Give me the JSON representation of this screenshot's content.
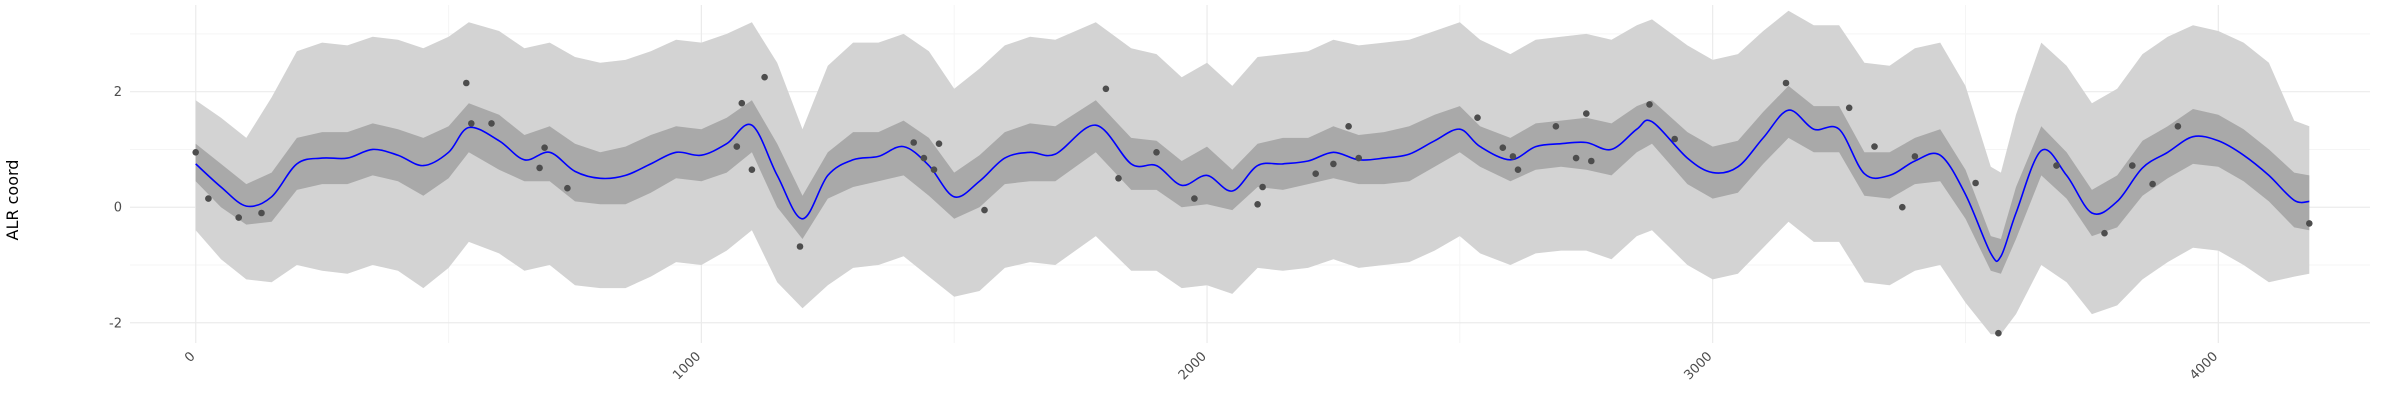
{
  "chart_data": {
    "type": "line",
    "title": "",
    "xlabel": "",
    "ylabel": "ALR coord",
    "xlim": [
      -130,
      4300
    ],
    "ylim": [
      -2.35,
      3.5
    ],
    "x_ticks": [
      0,
      1000,
      2000,
      3000,
      4000
    ],
    "x_tick_labels": [
      "0",
      "1000",
      "2000",
      "3000",
      "4000"
    ],
    "y_ticks": [
      -2,
      0,
      2
    ],
    "y_tick_labels": [
      "-2",
      "0",
      "2"
    ],
    "grid": true,
    "colors": {
      "mean": "#0000ff",
      "inner_band": "#a9a9a9",
      "outer_band": "#d3d3d3",
      "points": "#4d4d4d",
      "grid_major": "#ebebeb",
      "grid_minor": "#f5f5f5"
    },
    "mean_line": {
      "x": [
        0,
        50,
        100,
        150,
        200,
        250,
        300,
        350,
        400,
        450,
        500,
        540,
        600,
        650,
        700,
        750,
        800,
        850,
        900,
        950,
        1000,
        1050,
        1100,
        1150,
        1200,
        1250,
        1300,
        1350,
        1400,
        1450,
        1500,
        1550,
        1600,
        1650,
        1700,
        1780,
        1850,
        1900,
        1950,
        2000,
        2050,
        2100,
        2150,
        2200,
        2250,
        2300,
        2350,
        2400,
        2450,
        2500,
        2540,
        2600,
        2650,
        2700,
        2750,
        2800,
        2850,
        2880,
        2950,
        3000,
        3050,
        3100,
        3150,
        3200,
        3250,
        3300,
        3350,
        3400,
        3450,
        3500,
        3550,
        3570,
        3600,
        3650,
        3700,
        3750,
        3800,
        3850,
        3900,
        3950,
        4000,
        4050,
        4100,
        4150,
        4180
      ],
      "y": [
        0.75,
        0.35,
        0.02,
        0.18,
        0.75,
        0.85,
        0.85,
        1.0,
        0.9,
        0.72,
        0.95,
        1.38,
        1.15,
        0.82,
        0.95,
        0.62,
        0.5,
        0.55,
        0.75,
        0.95,
        0.9,
        1.1,
        1.42,
        0.55,
        -0.2,
        0.55,
        0.82,
        0.88,
        1.05,
        0.72,
        0.18,
        0.45,
        0.85,
        0.95,
        0.92,
        1.42,
        0.75,
        0.72,
        0.38,
        0.55,
        0.28,
        0.72,
        0.75,
        0.8,
        0.95,
        0.82,
        0.85,
        0.92,
        1.15,
        1.35,
        1.05,
        0.82,
        1.05,
        1.1,
        1.12,
        1.0,
        1.35,
        1.48,
        0.85,
        0.6,
        0.7,
        1.2,
        1.68,
        1.35,
        1.35,
        0.58,
        0.55,
        0.8,
        0.9,
        0.22,
        -0.8,
        -0.85,
        -0.1,
        0.98,
        0.55,
        -0.1,
        0.1,
        0.68,
        0.95,
        1.22,
        1.15,
        0.9,
        0.55,
        0.12,
        0.1
      ]
    },
    "inner_band": {
      "x": [
        0,
        50,
        100,
        150,
        200,
        250,
        300,
        350,
        400,
        450,
        500,
        540,
        600,
        650,
        700,
        750,
        800,
        850,
        900,
        950,
        1000,
        1050,
        1100,
        1150,
        1200,
        1250,
        1300,
        1350,
        1400,
        1450,
        1500,
        1550,
        1600,
        1650,
        1700,
        1780,
        1850,
        1900,
        1950,
        2000,
        2050,
        2100,
        2150,
        2200,
        2250,
        2300,
        2350,
        2400,
        2450,
        2500,
        2540,
        2600,
        2650,
        2700,
        2750,
        2800,
        2850,
        2880,
        2950,
        3000,
        3050,
        3100,
        3150,
        3200,
        3250,
        3300,
        3350,
        3400,
        3450,
        3500,
        3550,
        3570,
        3600,
        3650,
        3700,
        3750,
        3800,
        3850,
        3900,
        3950,
        4000,
        4050,
        4100,
        4150,
        4180
      ],
      "lower": [
        0.45,
        0.0,
        -0.3,
        -0.25,
        0.3,
        0.4,
        0.4,
        0.55,
        0.45,
        0.2,
        0.5,
        0.95,
        0.65,
        0.45,
        0.45,
        0.1,
        0.05,
        0.05,
        0.25,
        0.5,
        0.45,
        0.6,
        0.95,
        0.0,
        -0.55,
        0.15,
        0.35,
        0.45,
        0.55,
        0.2,
        -0.2,
        0.0,
        0.4,
        0.45,
        0.45,
        0.95,
        0.3,
        0.3,
        0.0,
        0.05,
        -0.05,
        0.35,
        0.3,
        0.4,
        0.5,
        0.4,
        0.4,
        0.45,
        0.7,
        0.95,
        0.7,
        0.45,
        0.65,
        0.7,
        0.65,
        0.55,
        0.95,
        1.1,
        0.4,
        0.15,
        0.25,
        0.75,
        1.2,
        0.95,
        0.95,
        0.2,
        0.15,
        0.4,
        0.45,
        -0.2,
        -1.1,
        -1.15,
        -0.55,
        0.55,
        0.15,
        -0.5,
        -0.35,
        0.2,
        0.5,
        0.75,
        0.7,
        0.45,
        0.1,
        -0.35,
        -0.4
      ],
      "upper": [
        1.1,
        0.75,
        0.4,
        0.6,
        1.2,
        1.3,
        1.3,
        1.45,
        1.35,
        1.2,
        1.4,
        1.8,
        1.6,
        1.25,
        1.4,
        1.1,
        0.95,
        1.05,
        1.25,
        1.4,
        1.35,
        1.55,
        1.85,
        1.1,
        0.2,
        0.95,
        1.3,
        1.3,
        1.5,
        1.2,
        0.6,
        0.9,
        1.3,
        1.45,
        1.4,
        1.85,
        1.2,
        1.15,
        0.8,
        1.05,
        0.65,
        1.1,
        1.2,
        1.2,
        1.4,
        1.25,
        1.3,
        1.4,
        1.6,
        1.75,
        1.4,
        1.2,
        1.45,
        1.5,
        1.55,
        1.45,
        1.75,
        1.85,
        1.3,
        1.05,
        1.15,
        1.65,
        2.1,
        1.75,
        1.75,
        0.95,
        0.95,
        1.2,
        1.35,
        0.65,
        -0.5,
        -0.55,
        0.35,
        1.4,
        0.95,
        0.3,
        0.55,
        1.15,
        1.4,
        1.7,
        1.6,
        1.35,
        1.0,
        0.6,
        0.55
      ]
    },
    "outer_band": {
      "x": [
        0,
        50,
        100,
        150,
        200,
        250,
        300,
        350,
        400,
        450,
        500,
        540,
        600,
        650,
        700,
        750,
        800,
        850,
        900,
        950,
        1000,
        1050,
        1100,
        1150,
        1200,
        1250,
        1300,
        1350,
        1400,
        1450,
        1500,
        1550,
        1600,
        1650,
        1700,
        1780,
        1850,
        1900,
        1950,
        2000,
        2050,
        2100,
        2150,
        2200,
        2250,
        2300,
        2350,
        2400,
        2450,
        2500,
        2540,
        2600,
        2650,
        2700,
        2750,
        2800,
        2850,
        2880,
        2950,
        3000,
        3050,
        3100,
        3150,
        3200,
        3250,
        3300,
        3350,
        3400,
        3450,
        3500,
        3550,
        3570,
        3600,
        3650,
        3700,
        3750,
        3800,
        3850,
        3900,
        3950,
        4000,
        4050,
        4100,
        4150,
        4180
      ],
      "lower": [
        -0.4,
        -0.9,
        -1.25,
        -1.3,
        -1.0,
        -1.1,
        -1.15,
        -1.0,
        -1.1,
        -1.4,
        -1.05,
        -0.6,
        -0.8,
        -1.1,
        -1.0,
        -1.35,
        -1.4,
        -1.4,
        -1.2,
        -0.95,
        -1.0,
        -0.75,
        -0.4,
        -1.3,
        -1.75,
        -1.35,
        -1.05,
        -1.0,
        -0.85,
        -1.2,
        -1.55,
        -1.45,
        -1.05,
        -0.95,
        -1.0,
        -0.5,
        -1.1,
        -1.1,
        -1.4,
        -1.35,
        -1.5,
        -1.05,
        -1.1,
        -1.05,
        -0.9,
        -1.05,
        -1.0,
        -0.95,
        -0.75,
        -0.5,
        -0.8,
        -1.0,
        -0.8,
        -0.75,
        -0.75,
        -0.9,
        -0.5,
        -0.4,
        -1.0,
        -1.25,
        -1.15,
        -0.7,
        -0.25,
        -0.6,
        -0.6,
        -1.3,
        -1.35,
        -1.1,
        -1.0,
        -1.65,
        -2.2,
        -2.2,
        -1.85,
        -1.0,
        -1.3,
        -1.85,
        -1.7,
        -1.25,
        -0.95,
        -0.7,
        -0.75,
        -1.0,
        -1.3,
        -1.2,
        -1.15
      ],
      "upper": [
        1.85,
        1.55,
        1.2,
        1.9,
        2.7,
        2.85,
        2.8,
        2.95,
        2.9,
        2.75,
        2.95,
        3.2,
        3.05,
        2.75,
        2.85,
        2.6,
        2.5,
        2.55,
        2.7,
        2.9,
        2.85,
        3.0,
        3.2,
        2.5,
        1.35,
        2.45,
        2.85,
        2.85,
        3.0,
        2.7,
        2.05,
        2.4,
        2.8,
        2.95,
        2.9,
        3.2,
        2.75,
        2.65,
        2.25,
        2.5,
        2.1,
        2.6,
        2.65,
        2.7,
        2.9,
        2.8,
        2.85,
        2.9,
        3.05,
        3.2,
        2.9,
        2.65,
        2.9,
        2.95,
        3.0,
        2.9,
        3.15,
        3.25,
        2.8,
        2.55,
        2.65,
        3.05,
        3.4,
        3.15,
        3.15,
        2.5,
        2.45,
        2.75,
        2.85,
        2.1,
        0.7,
        0.6,
        1.6,
        2.85,
        2.45,
        1.8,
        2.05,
        2.65,
        2.95,
        3.15,
        3.05,
        2.85,
        2.5,
        1.5,
        1.4
      ]
    },
    "points": {
      "x": [
        0,
        25,
        85,
        130,
        535,
        545,
        585,
        680,
        690,
        735,
        1070,
        1080,
        1100,
        1125,
        1195,
        1420,
        1440,
        1460,
        1470,
        1560,
        1800,
        1825,
        1900,
        1975,
        2100,
        2110,
        2215,
        2250,
        2280,
        2300,
        2535,
        2585,
        2605,
        2615,
        2690,
        2730,
        2750,
        2760,
        2875,
        2925,
        3145,
        3270,
        3320,
        3375,
        3400,
        3520,
        3565,
        3680,
        3775,
        3830,
        3870,
        3920,
        4180
      ],
      "y": [
        0.95,
        0.15,
        -0.18,
        -0.1,
        2.15,
        1.45,
        1.45,
        0.68,
        1.03,
        0.33,
        1.05,
        1.8,
        0.65,
        2.25,
        -0.68,
        1.12,
        0.85,
        0.65,
        1.1,
        -0.05,
        2.05,
        0.5,
        0.95,
        0.15,
        0.05,
        0.35,
        0.58,
        0.75,
        1.4,
        0.85,
        1.55,
        1.03,
        0.88,
        0.65,
        1.4,
        0.85,
        1.62,
        0.8,
        1.78,
        1.18,
        2.15,
        1.72,
        1.05,
        0.0,
        0.88,
        0.42,
        -2.18,
        0.72,
        -0.45,
        0.72,
        0.4,
        1.4,
        -0.28
      ]
    }
  }
}
